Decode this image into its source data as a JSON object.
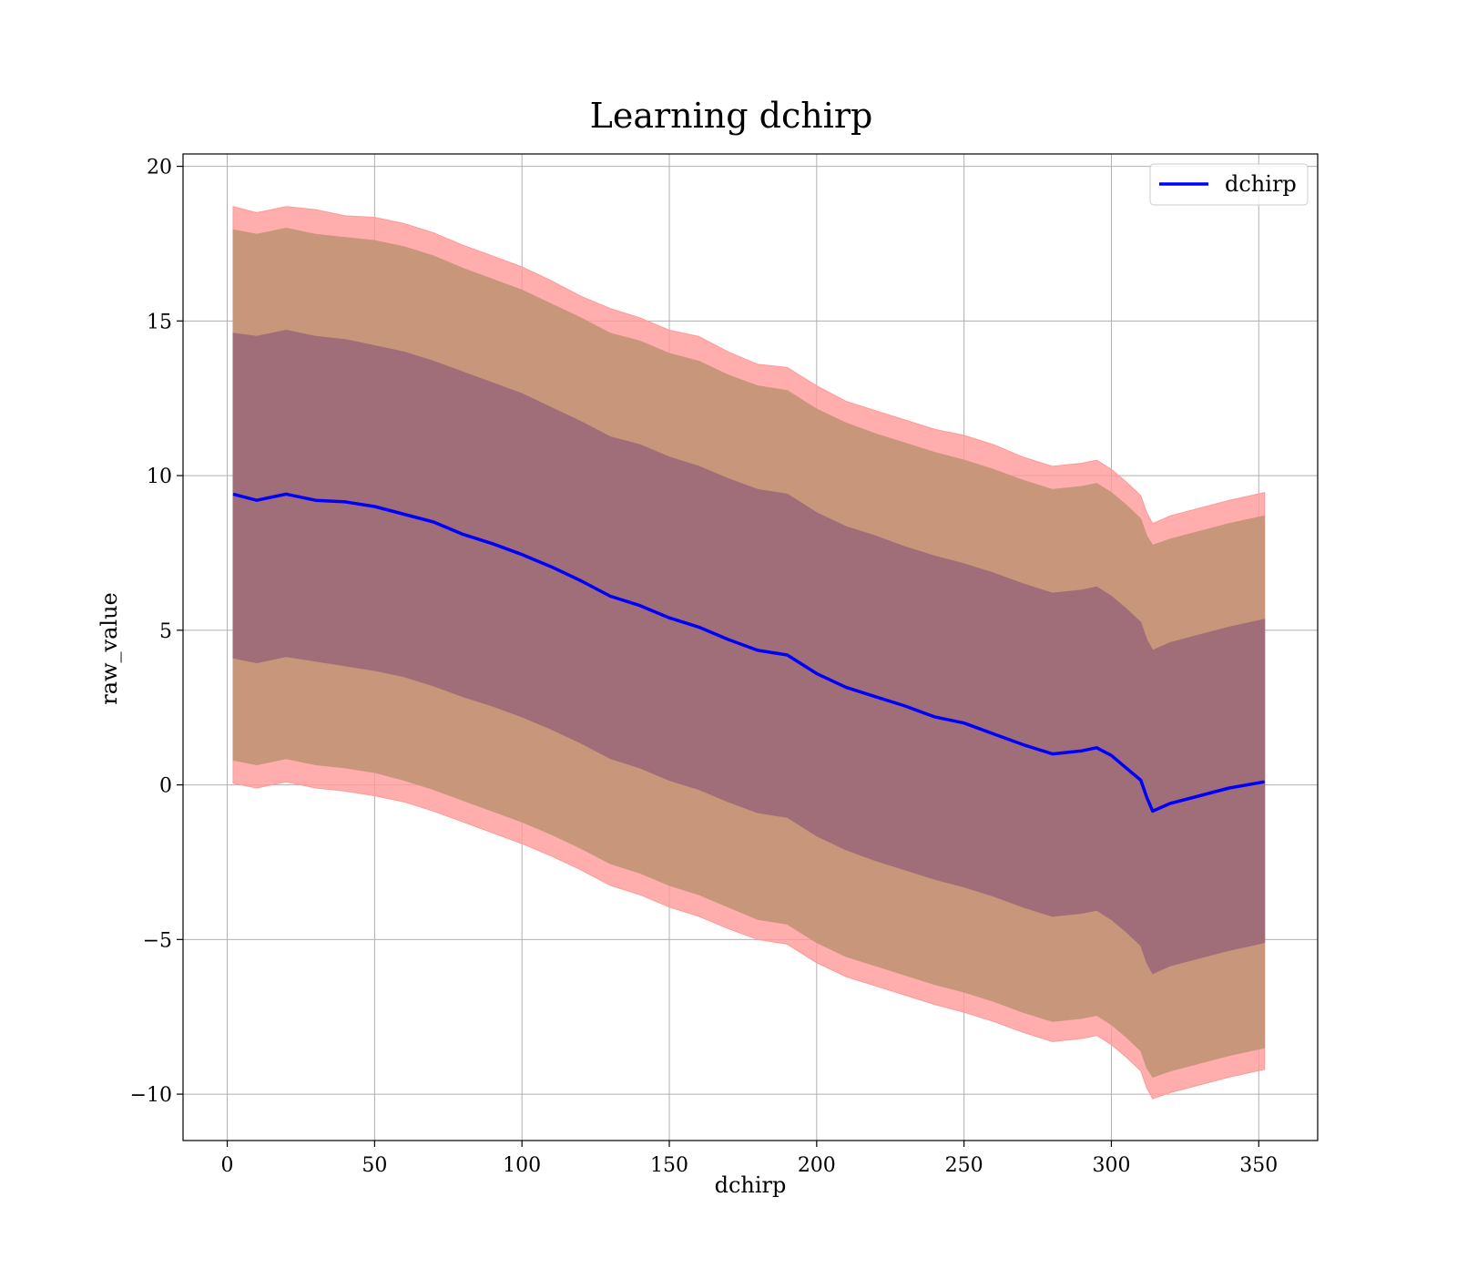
{
  "chart_data": {
    "type": "line",
    "title": "Learning dchirp",
    "xlabel": "dchirp",
    "ylabel": "raw_value",
    "xlim": [
      -15,
      370
    ],
    "ylim": [
      -11.5,
      20.4
    ],
    "xticks": [
      0,
      50,
      100,
      150,
      200,
      250,
      300,
      350
    ],
    "yticks": [
      -10,
      -5,
      0,
      5,
      10,
      15,
      20
    ],
    "xtick_labels": [
      "0",
      "50",
      "100",
      "150",
      "200",
      "250",
      "300",
      "350"
    ],
    "ytick_labels": [
      "−10",
      "−5",
      "0",
      "5",
      "10",
      "15",
      "20"
    ],
    "grid": true,
    "legend": {
      "position": "top-right",
      "entries": [
        "dchirp"
      ]
    },
    "colors": {
      "line": "#0000ff",
      "band_outer": "#ff9999",
      "band_middle": "#c8967a",
      "band_inner": "#a06e78",
      "grid": "#b0b0b0"
    },
    "x": [
      2,
      10,
      20,
      30,
      40,
      50,
      60,
      70,
      80,
      90,
      100,
      110,
      120,
      130,
      140,
      150,
      160,
      170,
      180,
      190,
      200,
      210,
      220,
      230,
      240,
      250,
      260,
      270,
      280,
      290,
      295,
      300,
      305,
      310,
      312,
      314,
      320,
      330,
      340,
      352
    ],
    "series": [
      {
        "name": "dchirp",
        "role": "mean",
        "values": [
          9.4,
          9.2,
          9.4,
          9.2,
          9.15,
          9.0,
          8.75,
          8.5,
          8.1,
          7.8,
          7.45,
          7.05,
          6.6,
          6.1,
          5.8,
          5.4,
          5.1,
          4.7,
          4.35,
          4.2,
          3.6,
          3.15,
          2.85,
          2.55,
          2.2,
          2.0,
          1.65,
          1.3,
          1.0,
          1.1,
          1.2,
          0.95,
          0.55,
          0.15,
          -0.4,
          -0.85,
          -0.6,
          -0.35,
          -0.1,
          0.1
        ]
      },
      {
        "name": "outer upper",
        "role": "band",
        "values": [
          18.7,
          18.5,
          18.7,
          18.6,
          18.4,
          18.35,
          18.15,
          17.85,
          17.45,
          17.1,
          16.75,
          16.3,
          15.8,
          15.4,
          15.1,
          14.7,
          14.5,
          14.0,
          13.6,
          13.5,
          12.9,
          12.4,
          12.1,
          11.8,
          11.5,
          11.3,
          11.0,
          10.6,
          10.3,
          10.4,
          10.5,
          10.2,
          9.8,
          9.35,
          8.8,
          8.45,
          8.7,
          8.95,
          9.2,
          9.45
        ]
      },
      {
        "name": "middle upper",
        "role": "band",
        "values": [
          17.95,
          17.8,
          18.0,
          17.8,
          17.7,
          17.6,
          17.4,
          17.1,
          16.7,
          16.35,
          16.0,
          15.55,
          15.1,
          14.6,
          14.35,
          13.95,
          13.7,
          13.25,
          12.9,
          12.75,
          12.15,
          11.7,
          11.35,
          11.05,
          10.75,
          10.5,
          10.2,
          9.85,
          9.55,
          9.65,
          9.75,
          9.45,
          9.05,
          8.6,
          8.05,
          7.75,
          7.95,
          8.2,
          8.45,
          8.7
        ]
      },
      {
        "name": "inner upper",
        "role": "band",
        "values": [
          14.6,
          14.5,
          14.7,
          14.5,
          14.4,
          14.2,
          14.0,
          13.7,
          13.35,
          13.0,
          12.65,
          12.2,
          11.75,
          11.25,
          11.0,
          10.6,
          10.3,
          9.9,
          9.55,
          9.4,
          8.8,
          8.35,
          8.05,
          7.7,
          7.4,
          7.15,
          6.85,
          6.5,
          6.2,
          6.3,
          6.4,
          6.1,
          5.7,
          5.25,
          4.7,
          4.35,
          4.6,
          4.85,
          5.1,
          5.35
        ]
      },
      {
        "name": "inner lower",
        "role": "band",
        "values": [
          4.1,
          3.95,
          4.15,
          4.0,
          3.85,
          3.7,
          3.5,
          3.2,
          2.85,
          2.55,
          2.2,
          1.8,
          1.35,
          0.85,
          0.55,
          0.15,
          -0.15,
          -0.55,
          -0.9,
          -1.05,
          -1.65,
          -2.1,
          -2.45,
          -2.75,
          -3.05,
          -3.3,
          -3.6,
          -3.95,
          -4.25,
          -4.15,
          -4.05,
          -4.35,
          -4.75,
          -5.2,
          -5.75,
          -6.1,
          -5.85,
          -5.6,
          -5.35,
          -5.1
        ]
      },
      {
        "name": "middle lower",
        "role": "band",
        "values": [
          0.8,
          0.65,
          0.85,
          0.65,
          0.55,
          0.4,
          0.15,
          -0.15,
          -0.5,
          -0.85,
          -1.2,
          -1.6,
          -2.05,
          -2.55,
          -2.85,
          -3.25,
          -3.55,
          -3.95,
          -4.35,
          -4.5,
          -5.1,
          -5.55,
          -5.85,
          -6.15,
          -6.45,
          -6.7,
          -7.0,
          -7.35,
          -7.65,
          -7.55,
          -7.45,
          -7.75,
          -8.15,
          -8.6,
          -9.15,
          -9.45,
          -9.25,
          -9.0,
          -8.75,
          -8.5
        ]
      },
      {
        "name": "outer lower",
        "role": "band",
        "values": [
          0.05,
          -0.1,
          0.1,
          -0.1,
          -0.2,
          -0.35,
          -0.55,
          -0.85,
          -1.2,
          -1.55,
          -1.9,
          -2.3,
          -2.75,
          -3.25,
          -3.55,
          -3.95,
          -4.25,
          -4.65,
          -5.0,
          -5.15,
          -5.75,
          -6.2,
          -6.5,
          -6.8,
          -7.1,
          -7.35,
          -7.65,
          -8.0,
          -8.3,
          -8.2,
          -8.1,
          -8.4,
          -8.8,
          -9.25,
          -9.8,
          -10.15,
          -9.95,
          -9.7,
          -9.45,
          -9.2
        ]
      }
    ]
  }
}
